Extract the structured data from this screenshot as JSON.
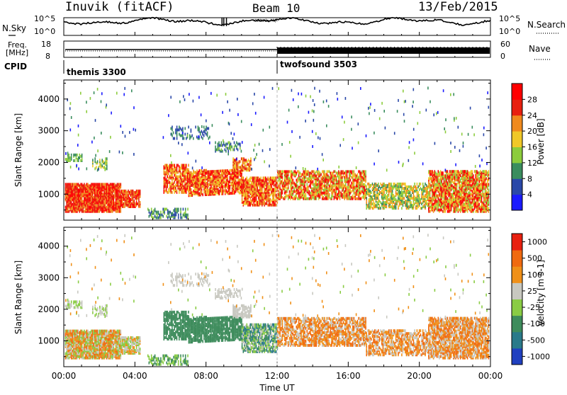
{
  "header": {
    "station": "Inuvik (fitACF)",
    "beam": "Beam 10",
    "date": "13/Feb/2015"
  },
  "noise_panel": {
    "left_label": "N.Sky",
    "right_label": "N.Search",
    "y_ticks": [
      "10^5",
      "10^0"
    ]
  },
  "freq_panel": {
    "left_label_line1": "Freq.",
    "left_label_line2": "[MHz]",
    "right_label": "Nave",
    "left_ticks": [
      "18",
      "8"
    ],
    "right_ticks": [
      "60",
      "0"
    ]
  },
  "cpid": {
    "label": "CPID",
    "segments": [
      {
        "name": "themis 3300",
        "start_hour": 0,
        "end_hour": 12
      },
      {
        "name": "twofsound 3503",
        "start_hour": 12,
        "end_hour": 24
      }
    ]
  },
  "chart_data": [
    {
      "type": "heatmap",
      "panel": "power",
      "ylabel": "Slant Range [km]",
      "xlabel": "",
      "xlim": [
        0,
        24
      ],
      "ylim": [
        180,
        4600
      ],
      "y_ticks": [
        1000,
        2000,
        3000,
        4000
      ],
      "colorbar": {
        "label": "Power [dB]",
        "ticks": [
          4,
          8,
          12,
          16,
          20,
          24,
          28
        ],
        "colors": [
          "#1a1aff",
          "#2a48a8",
          "#3a8d5e",
          "#8ccc3c",
          "#f0c828",
          "#f08a1e",
          "#e82010",
          "#ff0000"
        ]
      }
    },
    {
      "type": "heatmap",
      "panel": "velocity",
      "ylabel": "Slant Range [km]",
      "xlabel": "Time UT",
      "xlim": [
        0,
        24
      ],
      "ylim": [
        180,
        4600
      ],
      "y_ticks": [
        1000,
        2000,
        3000,
        4000
      ],
      "x_tick_labels": [
        "00:00",
        "04:00",
        "08:00",
        "12:00",
        "16:00",
        "20:00",
        "00:00"
      ],
      "colorbar": {
        "label": "Velocity [m s-1]",
        "ticks": [
          1000,
          500,
          100,
          25,
          -25,
          -100,
          -500,
          -1000
        ],
        "tick_labels": [
          "1000",
          "500",
          "100",
          "25",
          "-25",
          "-100",
          "-500",
          "-1000"
        ],
        "colors": [
          "#2040c0",
          "#2a7a8a",
          "#3e8c5c",
          "#8acc44",
          "#c8c8c0",
          "#f09018",
          "#f06a10",
          "#e82010"
        ]
      }
    }
  ]
}
